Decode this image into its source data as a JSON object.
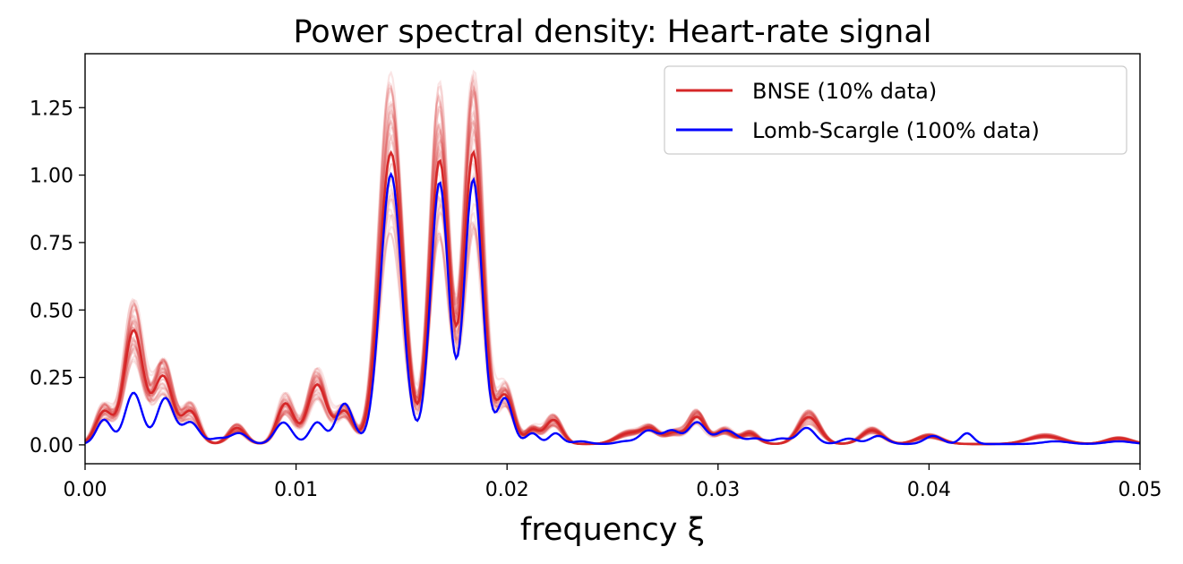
{
  "chart_data": {
    "type": "line",
    "title": "Power spectral density: Heart-rate signal",
    "xlabel": "frequency ξ",
    "ylabel": "",
    "xlim": [
      0.0,
      0.05
    ],
    "ylim": [
      -0.07,
      1.45
    ],
    "xticks": [
      0.0,
      0.01,
      0.02,
      0.03,
      0.04,
      0.05
    ],
    "xtick_labels": [
      "0.00",
      "0.01",
      "0.02",
      "0.03",
      "0.04",
      "0.05"
    ],
    "yticks": [
      0.0,
      0.25,
      0.5,
      0.75,
      1.0,
      1.25
    ],
    "ytick_labels": [
      "0.00",
      "0.25",
      "0.50",
      "0.75",
      "1.00",
      "1.25"
    ],
    "grid": false,
    "legend_position": "top-right",
    "series": [
      {
        "name": "BNSE (10% data)",
        "color": "#d62728",
        "peaks": [
          {
            "x": 0.0009,
            "y": 0.12,
            "w": 0.0004
          },
          {
            "x": 0.0023,
            "y": 0.42,
            "w": 0.00045
          },
          {
            "x": 0.0037,
            "y": 0.25,
            "w": 0.00045
          },
          {
            "x": 0.005,
            "y": 0.12,
            "w": 0.0004
          },
          {
            "x": 0.0072,
            "y": 0.06,
            "w": 0.0004
          },
          {
            "x": 0.0095,
            "y": 0.15,
            "w": 0.0004
          },
          {
            "x": 0.011,
            "y": 0.22,
            "w": 0.00045
          },
          {
            "x": 0.0123,
            "y": 0.12,
            "w": 0.0004
          },
          {
            "x": 0.0145,
            "y": 1.08,
            "w": 0.00055
          },
          {
            "x": 0.0168,
            "y": 1.05,
            "w": 0.00045
          },
          {
            "x": 0.0184,
            "y": 1.08,
            "w": 0.00045
          },
          {
            "x": 0.0199,
            "y": 0.18,
            "w": 0.0004
          },
          {
            "x": 0.0212,
            "y": 0.05,
            "w": 0.0003
          },
          {
            "x": 0.0222,
            "y": 0.09,
            "w": 0.0004
          },
          {
            "x": 0.0258,
            "y": 0.04,
            "w": 0.0006
          },
          {
            "x": 0.0268,
            "y": 0.05,
            "w": 0.0004
          },
          {
            "x": 0.0279,
            "y": 0.04,
            "w": 0.0004
          },
          {
            "x": 0.029,
            "y": 0.1,
            "w": 0.0004
          },
          {
            "x": 0.0303,
            "y": 0.05,
            "w": 0.0004
          },
          {
            "x": 0.0315,
            "y": 0.04,
            "w": 0.0004
          },
          {
            "x": 0.0343,
            "y": 0.1,
            "w": 0.0005
          },
          {
            "x": 0.0373,
            "y": 0.05,
            "w": 0.0005
          },
          {
            "x": 0.04,
            "y": 0.03,
            "w": 0.0006
          },
          {
            "x": 0.0455,
            "y": 0.03,
            "w": 0.0008
          },
          {
            "x": 0.049,
            "y": 0.02,
            "w": 0.0006
          }
        ]
      },
      {
        "name": "Lomb-Scargle (100% data)",
        "color": "#0000ff",
        "peaks": [
          {
            "x": 0.0009,
            "y": 0.09,
            "w": 0.00035
          },
          {
            "x": 0.0023,
            "y": 0.19,
            "w": 0.0004
          },
          {
            "x": 0.0038,
            "y": 0.17,
            "w": 0.0004
          },
          {
            "x": 0.005,
            "y": 0.08,
            "w": 0.0004
          },
          {
            "x": 0.0063,
            "y": 0.02,
            "w": 0.0004
          },
          {
            "x": 0.0073,
            "y": 0.04,
            "w": 0.0004
          },
          {
            "x": 0.0094,
            "y": 0.08,
            "w": 0.0004
          },
          {
            "x": 0.011,
            "y": 0.08,
            "w": 0.00035
          },
          {
            "x": 0.0123,
            "y": 0.15,
            "w": 0.0004
          },
          {
            "x": 0.0145,
            "y": 1.0,
            "w": 0.0005
          },
          {
            "x": 0.0168,
            "y": 0.97,
            "w": 0.00042
          },
          {
            "x": 0.0184,
            "y": 0.98,
            "w": 0.00042
          },
          {
            "x": 0.0199,
            "y": 0.17,
            "w": 0.00035
          },
          {
            "x": 0.0212,
            "y": 0.04,
            "w": 0.0003
          },
          {
            "x": 0.0223,
            "y": 0.04,
            "w": 0.0003
          },
          {
            "x": 0.0235,
            "y": 0.01,
            "w": 0.0004
          },
          {
            "x": 0.0256,
            "y": 0.01,
            "w": 0.0004
          },
          {
            "x": 0.0267,
            "y": 0.05,
            "w": 0.0004
          },
          {
            "x": 0.0278,
            "y": 0.05,
            "w": 0.0004
          },
          {
            "x": 0.029,
            "y": 0.08,
            "w": 0.0004
          },
          {
            "x": 0.0304,
            "y": 0.05,
            "w": 0.0005
          },
          {
            "x": 0.0318,
            "y": 0.02,
            "w": 0.0004
          },
          {
            "x": 0.033,
            "y": 0.02,
            "w": 0.0004
          },
          {
            "x": 0.0342,
            "y": 0.06,
            "w": 0.0004
          },
          {
            "x": 0.0362,
            "y": 0.02,
            "w": 0.0004
          },
          {
            "x": 0.0376,
            "y": 0.03,
            "w": 0.0004
          },
          {
            "x": 0.0402,
            "y": 0.03,
            "w": 0.0004
          },
          {
            "x": 0.0418,
            "y": 0.04,
            "w": 0.0003
          },
          {
            "x": 0.046,
            "y": 0.01,
            "w": 0.0006
          },
          {
            "x": 0.049,
            "y": 0.01,
            "w": 0.0006
          }
        ]
      }
    ]
  }
}
